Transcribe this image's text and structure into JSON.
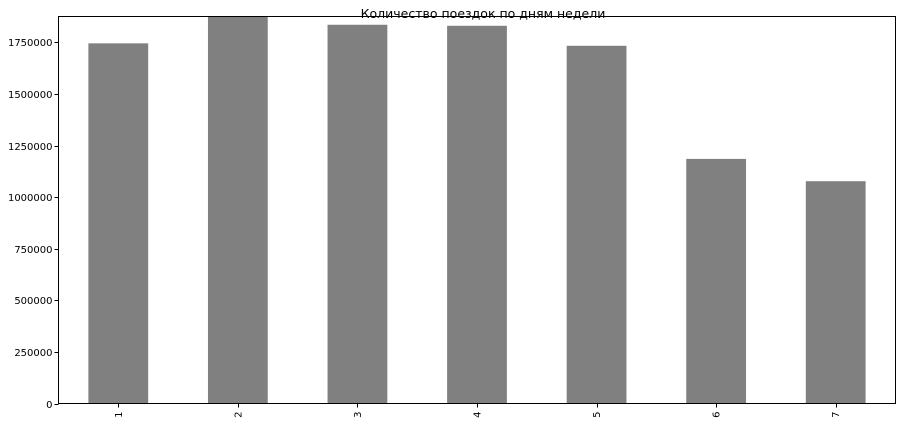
{
  "chart_data": {
    "type": "bar",
    "title": "Количество поездок по дням недели",
    "categories": [
      "1",
      "2",
      "3",
      "4",
      "5",
      "6",
      "7"
    ],
    "values": [
      1745000,
      1873000,
      1835000,
      1830000,
      1733000,
      1185000,
      1077000
    ],
    "xlabel": "",
    "ylabel": "",
    "ylim": [
      0,
      1875000
    ],
    "yticks": [
      0,
      250000,
      500000,
      750000,
      1000000,
      1250000,
      1500000,
      1750000
    ],
    "ytick_labels": [
      "0",
      "250000",
      "500000",
      "750000",
      "1000000",
      "1250000",
      "1500000",
      "1750000"
    ],
    "grid": false,
    "legend": "none",
    "bar_color": "#808080",
    "x_tick_rotation": "vertical"
  }
}
